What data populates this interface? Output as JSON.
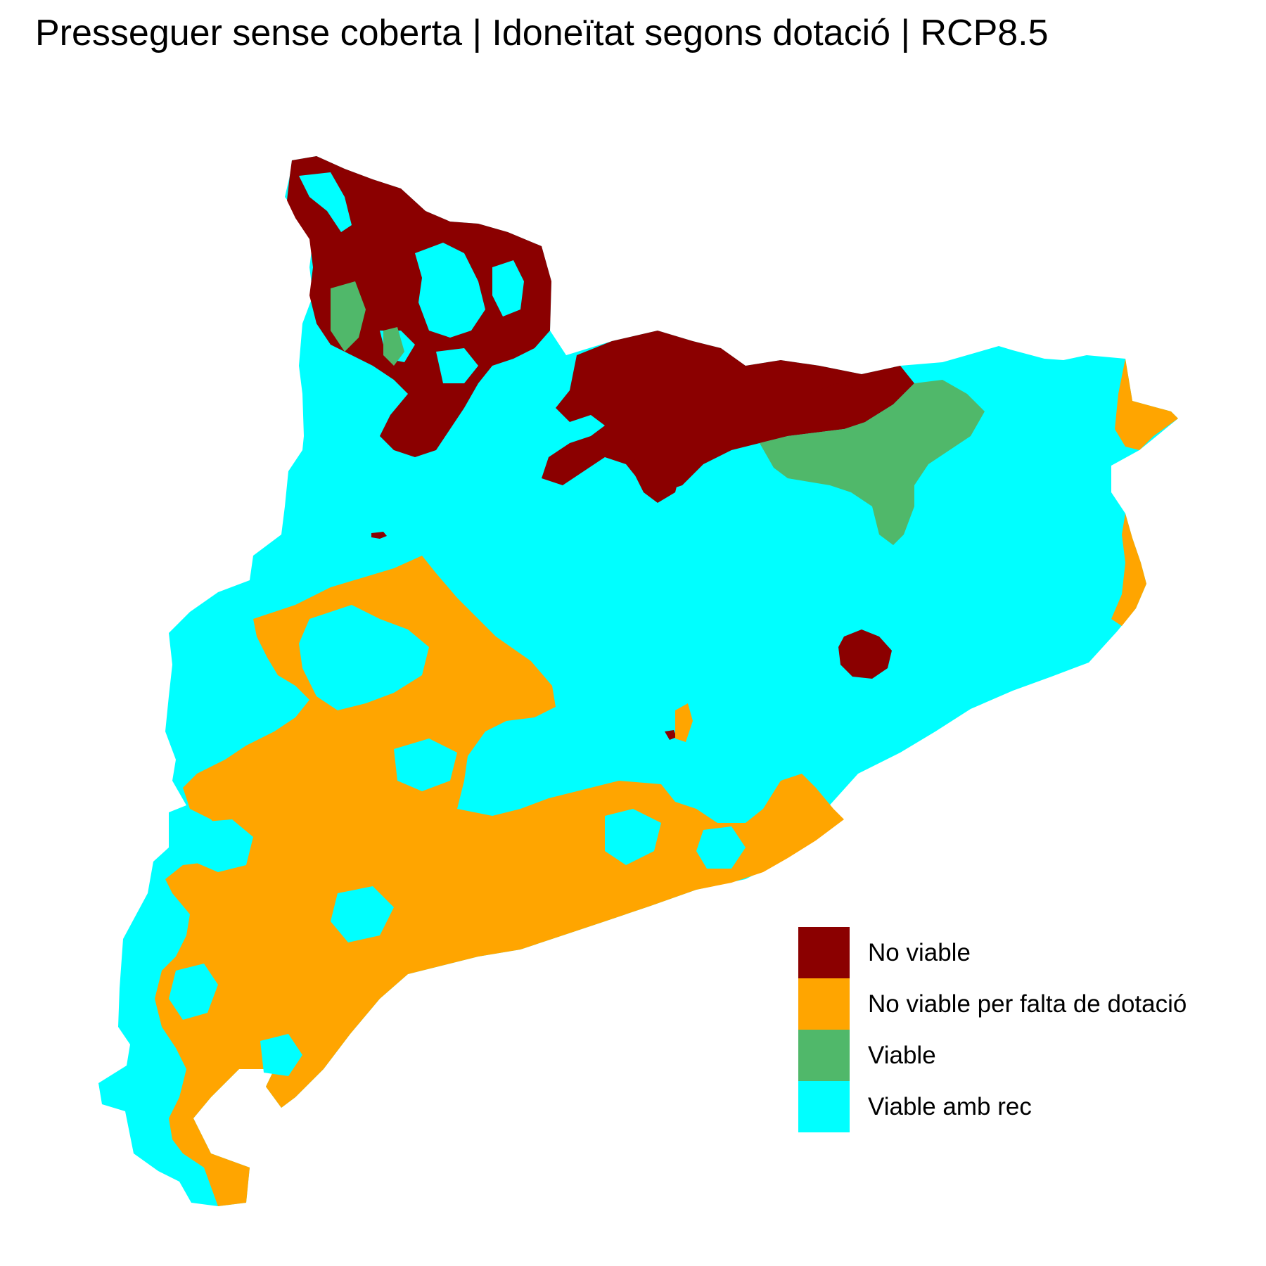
{
  "title": "Presseguer sense coberta | Idoneïtat segons dotació | RCP8.5",
  "legend": {
    "items": [
      {
        "label": "No viable",
        "color": "#8B0000"
      },
      {
        "label": "No viable per falta de dotació",
        "color": "#FFA500"
      },
      {
        "label": "Viable",
        "color": "#50B86A"
      },
      {
        "label": "Viable amb rec",
        "color": "#00FFFF"
      }
    ]
  },
  "colors": {
    "background": "#FFFFFF",
    "no_viable": "#8B0000",
    "no_viable_dotacio": "#FFA500",
    "viable": "#50B86A",
    "viable_amb_rec": "#00FFFF"
  }
}
